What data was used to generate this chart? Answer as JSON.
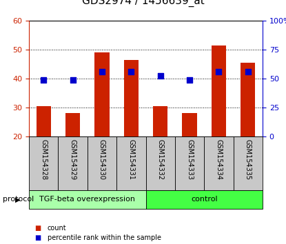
{
  "title": "GDS2974 / 1456639_at",
  "samples": [
    "GSM154328",
    "GSM154329",
    "GSM154330",
    "GSM154331",
    "GSM154332",
    "GSM154333",
    "GSM154334",
    "GSM154335"
  ],
  "count_values": [
    30.5,
    28.0,
    49.0,
    46.5,
    30.5,
    28.0,
    51.5,
    45.5
  ],
  "percentile_values": [
    39.5,
    39.5,
    42.5,
    42.5,
    41.0,
    39.5,
    42.5,
    42.5
  ],
  "bar_bottom": 20,
  "ylim_left": [
    20,
    60
  ],
  "ylim_right": [
    0,
    100
  ],
  "yticks_left": [
    20,
    30,
    40,
    50,
    60
  ],
  "yticks_right": [
    0,
    25,
    50,
    75,
    100
  ],
  "ytick_labels_right": [
    "0",
    "25",
    "50",
    "75",
    "100%"
  ],
  "bar_color": "#cc2200",
  "dot_color": "#0000cc",
  "protocol_groups": [
    {
      "label": "TGF-beta overexpression",
      "start": 0,
      "end": 4,
      "color": "#aaffaa"
    },
    {
      "label": "control",
      "start": 4,
      "end": 8,
      "color": "#44ff44"
    }
  ],
  "protocol_label": "protocol",
  "legend_items": [
    {
      "color": "#cc2200",
      "label": "count"
    },
    {
      "color": "#0000cc",
      "label": "percentile rank within the sample"
    }
  ],
  "bar_width": 0.5,
  "dot_size": 30,
  "title_fontsize": 11,
  "tick_fontsize": 8,
  "sample_fontsize": 7,
  "proto_fontsize": 8,
  "legend_fontsize": 8,
  "left_tick_color": "#cc2200",
  "right_tick_color": "#0000cc",
  "label_area_color": "#c8c8c8",
  "fig_width": 4.15,
  "fig_height": 3.54,
  "fig_dpi": 100
}
